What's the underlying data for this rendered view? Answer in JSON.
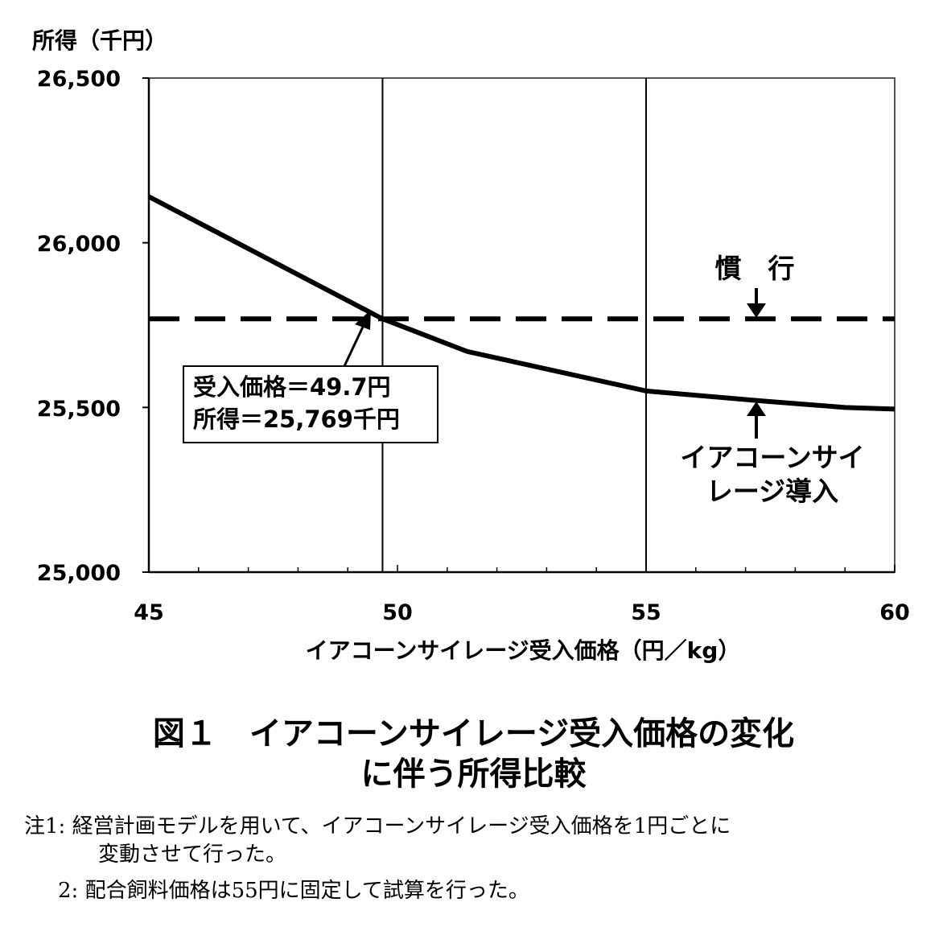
{
  "chart_data": {
    "type": "line",
    "ylabel": "所得（千円）",
    "xlabel": "イアコーンサイレージ受入価格（円／kg）",
    "xlim": [
      45,
      60
    ],
    "ylim": [
      25000,
      26500
    ],
    "x_ticks": [
      "45",
      "50",
      "55",
      "60"
    ],
    "y_ticks": [
      "25,000",
      "25,500",
      "26,000",
      "26,500"
    ],
    "reference_x": [
      49.7,
      55
    ],
    "series": [
      {
        "name": "イアコーンサイレージ導入",
        "style": "solid",
        "x": [
          45,
          49.7,
          51.4,
          55,
          57.3,
          59,
          60
        ],
        "y": [
          26140,
          25769,
          25670,
          25550,
          25520,
          25500,
          25495
        ]
      },
      {
        "name": "慣行",
        "style": "dashed",
        "x": [
          45,
          60
        ],
        "y": [
          25769,
          25769
        ]
      }
    ],
    "annotations": {
      "conventional_label": "慣　行",
      "ear_corn_label_line1": "イアコーンサイ",
      "ear_corn_label_line2": "レージ導入",
      "box_line1": "受入価格＝49.7円",
      "box_line2": "所得＝25,769千円"
    },
    "grid": false,
    "legend": "none"
  },
  "figure": {
    "title_line1": "図１　イアコーンサイレージ受入価格の変化",
    "title_line2": "に伴う所得比較"
  },
  "notes": {
    "note1_line1": "注1:  経営計画モデルを用いて、イアコーンサイレージ受入価格を1円ごとに",
    "note1_line2": "変動させて行った。",
    "note2": "2:  配合飼料価格は55円に固定して試算を行った。"
  }
}
